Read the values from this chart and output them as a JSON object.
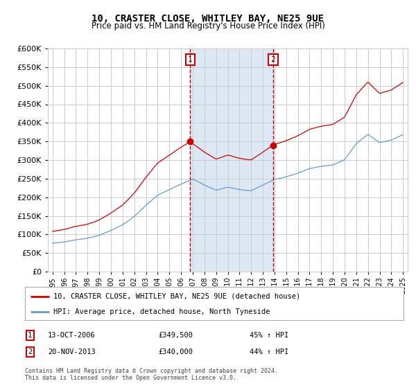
{
  "title": "10, CRASTER CLOSE, WHITLEY BAY, NE25 9UE",
  "subtitle": "Price paid vs. HM Land Registry's House Price Index (HPI)",
  "legend_line1": "10, CRASTER CLOSE, WHITLEY BAY, NE25 9UE (detached house)",
  "legend_line2": "HPI: Average price, detached house, North Tyneside",
  "annotation1": {
    "label": "1",
    "date": "13-OCT-2006",
    "price": "£349,500",
    "pct": "45% ↑ HPI",
    "x_year": 2006.79
  },
  "annotation2": {
    "label": "2",
    "date": "20-NOV-2013",
    "price": "£340,000",
    "pct": "44% ↑ HPI",
    "x_year": 2013.88
  },
  "footer": "Contains HM Land Registry data © Crown copyright and database right 2024.\nThis data is licensed under the Open Government Licence v3.0.",
  "ylim": [
    0,
    600000
  ],
  "yticks": [
    0,
    50000,
    100000,
    150000,
    200000,
    250000,
    300000,
    350000,
    400000,
    450000,
    500000,
    550000,
    600000
  ],
  "xlim_start": 1994.6,
  "xlim_end": 2025.4,
  "property_color": "#cc0000",
  "hpi_color": "#6699cc",
  "vline_color": "#cc0000",
  "highlight_color": "#dce9f5",
  "background_color": "#ffffff",
  "grid_color": "#cccccc",
  "sale1_price": 349500,
  "sale2_price": 340000,
  "sale1_year": 2006.79,
  "sale2_year": 2013.88
}
